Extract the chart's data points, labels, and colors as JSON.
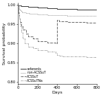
{
  "title": "",
  "xlabel": "Days",
  "ylabel": "Survival probability",
  "xlim": [
    0,
    800
  ],
  "ylim": [
    0.795,
    1.005
  ],
  "yticks": [
    0.8,
    0.85,
    0.9,
    0.95,
    1.0
  ],
  "xticks": [
    0,
    200,
    400,
    600,
    800
  ],
  "background_color": "#ffffff",
  "fontsize": 4.5,
  "legend_labels": [
    "referents",
    "non-ACSSuT",
    "ACSSuT",
    "ACSSuTNa"
  ],
  "legend_colors": [
    "#333333",
    "#999999",
    "#666666",
    "#aaaaaa"
  ],
  "legend_linestyles": [
    "solid",
    "dotted",
    "dashed",
    "dashdot"
  ],
  "referents_x": [
    0,
    5,
    15,
    30,
    60,
    100,
    150,
    200,
    300,
    400,
    500,
    600,
    700,
    800
  ],
  "referents_y": [
    1.0,
    0.999,
    0.998,
    0.997,
    0.996,
    0.995,
    0.994,
    0.993,
    0.991,
    0.99,
    0.989,
    0.988,
    0.987,
    0.986
  ],
  "nonACSSuT_x": [
    0,
    5,
    10,
    20,
    30,
    50,
    80,
    120,
    150,
    200,
    250,
    300,
    350,
    400,
    450,
    500,
    600,
    700,
    800
  ],
  "nonACSSuT_y": [
    1.0,
    0.994,
    0.99,
    0.986,
    0.983,
    0.98,
    0.978,
    0.977,
    0.976,
    0.975,
    0.975,
    0.974,
    0.974,
    0.973,
    0.973,
    0.972,
    0.972,
    0.971,
    0.971
  ],
  "ACSSuT_x": [
    0,
    5,
    10,
    20,
    30,
    50,
    80,
    100,
    150,
    200,
    300,
    380,
    400,
    420,
    500,
    600,
    700,
    800
  ],
  "ACSSuT_y": [
    1.0,
    0.978,
    0.965,
    0.955,
    0.945,
    0.935,
    0.925,
    0.918,
    0.912,
    0.906,
    0.902,
    0.9,
    0.96,
    0.958,
    0.956,
    0.955,
    0.954,
    0.953
  ],
  "ACSSuTNa_x": [
    0,
    5,
    10,
    20,
    30,
    50,
    70,
    100,
    150,
    200,
    300,
    380,
    400,
    420,
    450,
    500,
    550,
    600,
    700,
    800
  ],
  "ACSSuTNa_y": [
    1.0,
    0.98,
    0.965,
    0.945,
    0.928,
    0.912,
    0.9,
    0.892,
    0.887,
    0.882,
    0.878,
    0.875,
    0.87,
    0.868,
    0.867,
    0.867,
    0.866,
    0.866,
    0.865,
    0.865
  ]
}
